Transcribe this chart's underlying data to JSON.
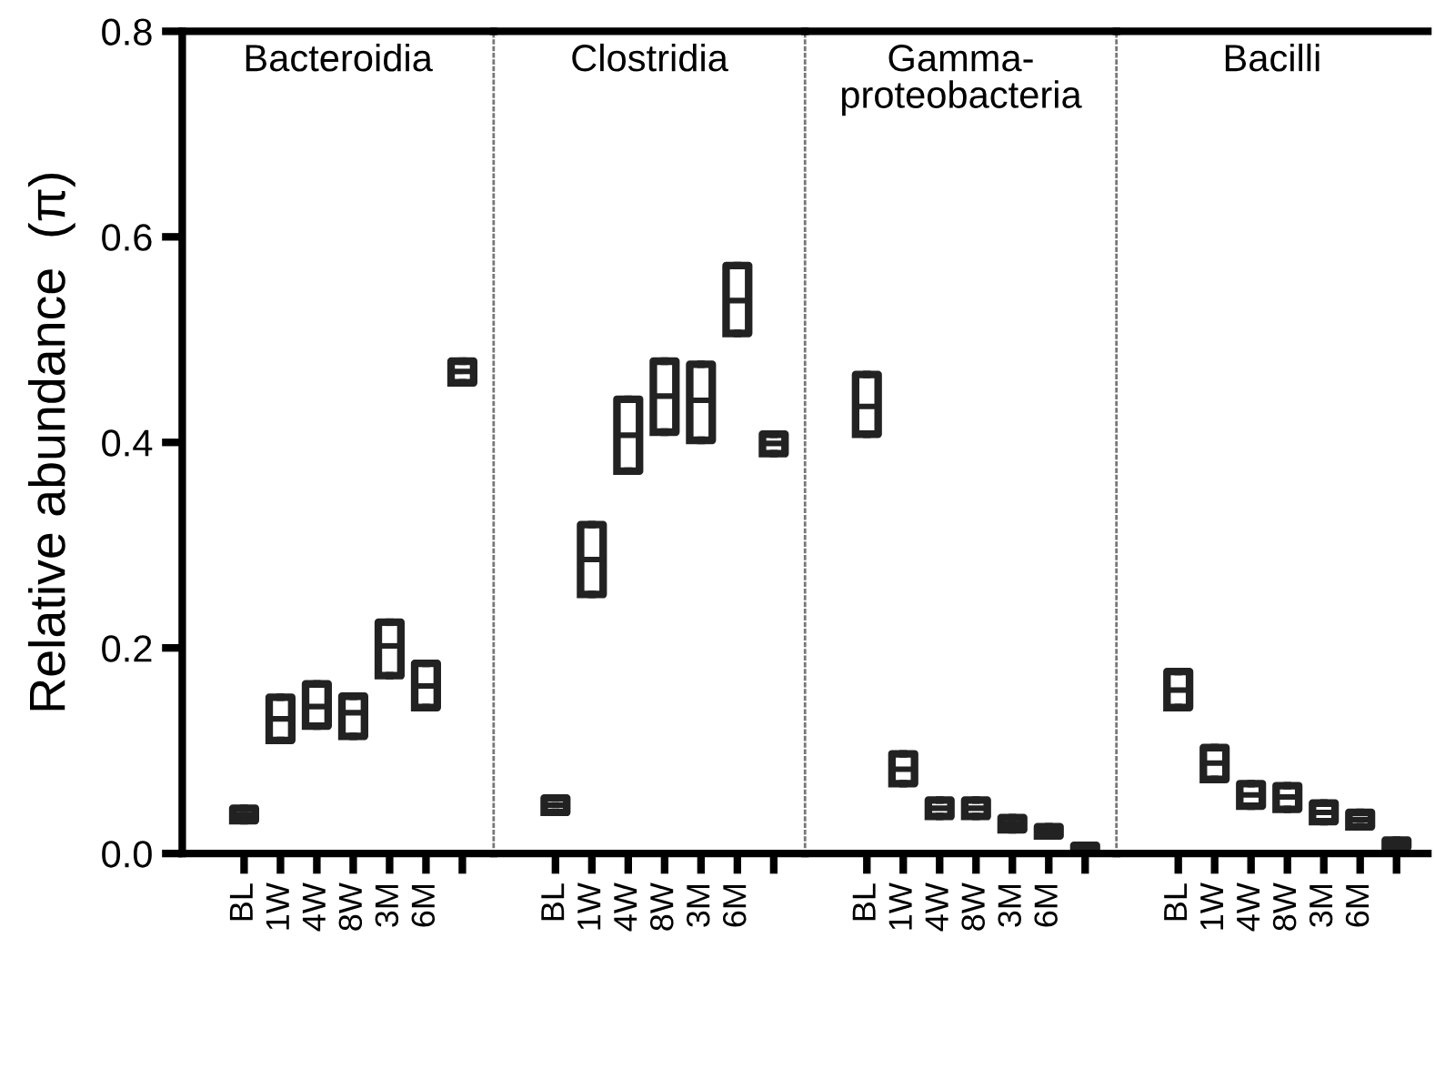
{
  "chart_data": [
    {
      "type": "box",
      "title": "Bacteroidia",
      "ylabel": "Relative abundance  (π)",
      "categories": [
        "BL",
        "1W",
        "4W",
        "8W",
        "3M",
        "6M",
        null
      ],
      "ylim": [
        0,
        0.8
      ],
      "yticks": [
        {
          "value": 0,
          "label": "0.0"
        },
        {
          "value": 0.2,
          "label": "0.2"
        },
        {
          "value": 0.4,
          "label": "0.4"
        },
        {
          "value": 0.6,
          "label": "0.6"
        },
        {
          "value": 0.8,
          "label": "0.8"
        }
      ],
      "boxes": [
        {
          "low": 0.032,
          "q1": 0.032,
          "median": 0.038,
          "q3": 0.044,
          "high": 0.044
        },
        {
          "low": 0.11,
          "q1": 0.11,
          "median": 0.131,
          "q3": 0.152,
          "high": 0.152
        },
        {
          "low": 0.124,
          "q1": 0.124,
          "median": 0.143,
          "q3": 0.165,
          "high": 0.165
        },
        {
          "low": 0.114,
          "q1": 0.114,
          "median": 0.137,
          "q3": 0.153,
          "high": 0.153
        },
        {
          "low": 0.173,
          "q1": 0.173,
          "median": 0.202,
          "q3": 0.225,
          "high": 0.225
        },
        {
          "low": 0.142,
          "q1": 0.142,
          "median": 0.163,
          "q3": 0.185,
          "high": 0.185
        },
        {
          "low": 0.458,
          "q1": 0.458,
          "median": 0.469,
          "q3": 0.479,
          "high": 0.479
        }
      ]
    },
    {
      "type": "box",
      "title": "Clostridia",
      "categories": [
        "BL",
        "1W",
        "4W",
        "8W",
        "3M",
        "6M",
        null
      ],
      "ylim": [
        0,
        0.8
      ],
      "tick_labels": "x",
      "boxes": [
        {
          "low": 0.04,
          "q1": 0.04,
          "median": 0.047,
          "q3": 0.054,
          "high": 0.054
        },
        {
          "low": 0.252,
          "q1": 0.252,
          "median": 0.286,
          "q3": 0.32,
          "high": 0.32
        },
        {
          "low": 0.372,
          "q1": 0.372,
          "median": 0.407,
          "q3": 0.442,
          "high": 0.442
        },
        {
          "low": 0.41,
          "q1": 0.41,
          "median": 0.445,
          "q3": 0.479,
          "high": 0.479
        },
        {
          "low": 0.402,
          "q1": 0.402,
          "median": 0.441,
          "q3": 0.476,
          "high": 0.476
        },
        {
          "low": 0.506,
          "q1": 0.506,
          "median": 0.538,
          "q3": 0.572,
          "high": 0.572
        },
        {
          "low": 0.389,
          "q1": 0.389,
          "median": 0.399,
          "q3": 0.408,
          "high": 0.408
        }
      ]
    },
    {
      "type": "box",
      "title": "Gamma-\nproteobacteria",
      "categories": [
        "BL",
        "1W",
        "4W",
        "8W",
        "3M",
        "6M",
        null
      ],
      "ylim": [
        0,
        0.8
      ],
      "tick_labels": "x",
      "boxes": [
        {
          "low": 0.408,
          "q1": 0.408,
          "median": 0.435,
          "q3": 0.466,
          "high": 0.466
        },
        {
          "low": 0.068,
          "q1": 0.068,
          "median": 0.082,
          "q3": 0.097,
          "high": 0.097
        },
        {
          "low": 0.036,
          "q1": 0.036,
          "median": 0.044,
          "q3": 0.052,
          "high": 0.052
        },
        {
          "low": 0.036,
          "q1": 0.036,
          "median": 0.044,
          "q3": 0.052,
          "high": 0.052
        },
        {
          "low": 0.023,
          "q1": 0.023,
          "median": 0.029,
          "q3": 0.035,
          "high": 0.035
        },
        {
          "low": 0.017,
          "q1": 0.017,
          "median": 0.021,
          "q3": 0.026,
          "high": 0.026
        },
        {
          "low": 0.001,
          "q1": 0.001,
          "median": 0.004,
          "q3": 0.008,
          "high": 0.008
        }
      ]
    },
    {
      "type": "box",
      "title": "Bacilli",
      "categories": [
        "BL",
        "1W",
        "4W",
        "8W",
        "3M",
        "6M",
        null
      ],
      "ylim": [
        0,
        0.8
      ],
      "tick_labels": "x",
      "boxes": [
        {
          "low": 0.142,
          "q1": 0.142,
          "median": 0.159,
          "q3": 0.177,
          "high": 0.177
        },
        {
          "low": 0.072,
          "q1": 0.072,
          "median": 0.088,
          "q3": 0.103,
          "high": 0.103
        },
        {
          "low": 0.046,
          "q1": 0.046,
          "median": 0.057,
          "q3": 0.068,
          "high": 0.068
        },
        {
          "low": 0.043,
          "q1": 0.043,
          "median": 0.055,
          "q3": 0.066,
          "high": 0.066
        },
        {
          "low": 0.031,
          "q1": 0.031,
          "median": 0.04,
          "q3": 0.049,
          "high": 0.049
        },
        {
          "low": 0.026,
          "q1": 0.026,
          "median": 0.033,
          "q3": 0.04,
          "high": 0.04
        },
        {
          "low": 0.006,
          "q1": 0.006,
          "median": 0.009,
          "q3": 0.013,
          "high": 0.013
        }
      ]
    }
  ]
}
